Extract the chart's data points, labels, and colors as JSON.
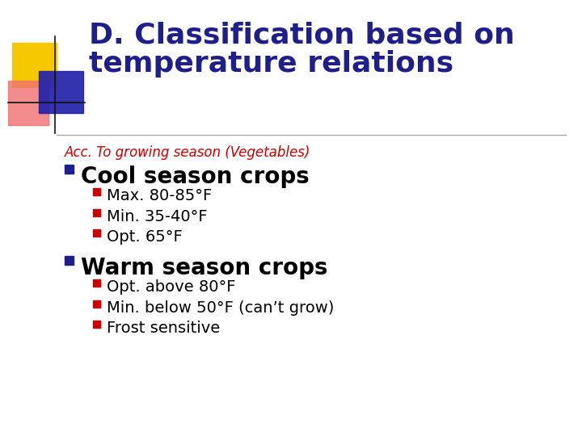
{
  "title_line1": "D. Classification based on",
  "title_line2": "temperature relations",
  "title_color": "#1f1f8c",
  "subtitle": "Acc. To growing season (Vegetables)",
  "subtitle_color": "#cc0000",
  "bg_color": "#ffffff",
  "bullet1": "Cool season crops",
  "bullet1_subs": [
    "Max. 80-85°F",
    "Min. 35-40°F",
    "Opt. 65°F"
  ],
  "bullet2": "Warm season crops",
  "bullet2_subs": [
    "Opt. above 80°F",
    "Min. below 50°F (can’t grow)",
    "Frost sensitive"
  ],
  "bullet_color": "#1f1f8c",
  "text_color": "#000000",
  "sub_square_color": "#cc0000",
  "deco_yellow": "#f5c800",
  "deco_pink": "#f07070",
  "deco_blue": "#2222aa",
  "line_color": "#aaaaaa",
  "title_fontsize": 26,
  "subtitle_fontsize": 12,
  "bullet1_fontsize": 20,
  "sub_fontsize": 14
}
